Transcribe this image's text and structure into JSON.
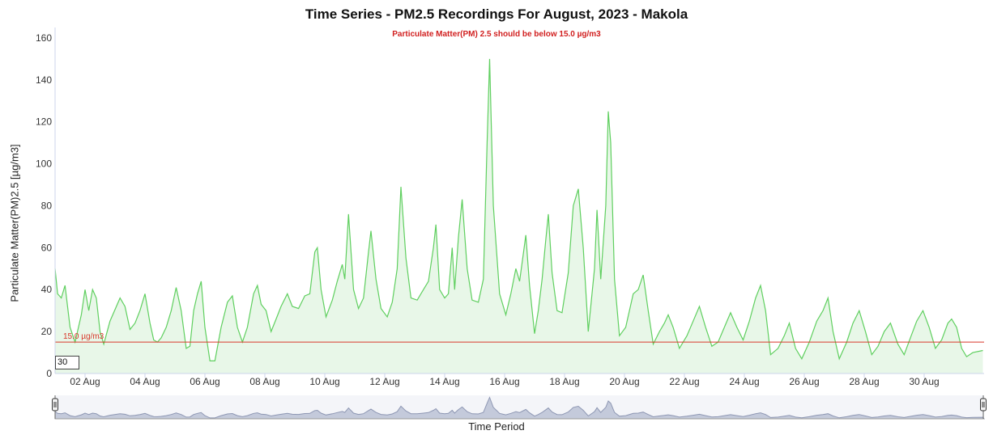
{
  "chart_data": {
    "type": "area",
    "title": "Time Series - PM2.5 Recordings For August, 2023 - Makola",
    "subtitle": "Particulate Matter(PM) 2.5 should be below 15.0 µg/m3",
    "ylabel": "Particulate Matter(PM)2.5 [µg/m3]",
    "navigator_label": "Time Period",
    "ylim": [
      0,
      165
    ],
    "yticks": [
      0,
      20,
      40,
      60,
      80,
      100,
      120,
      140,
      160
    ],
    "xlim": [
      "2023-08-01",
      "2023-09-01"
    ],
    "xtick_labels": [
      "02 Aug",
      "04 Aug",
      "06 Aug",
      "08 Aug",
      "10 Aug",
      "12 Aug",
      "14 Aug",
      "16 Aug",
      "18 Aug",
      "20 Aug",
      "22 Aug",
      "24 Aug",
      "26 Aug",
      "28 Aug",
      "30 Aug"
    ],
    "threshold": {
      "value": 15.0,
      "label": "15.0 µg/m3",
      "color": "#d9382b"
    },
    "zoom_value": "30",
    "series_color": "#5fcf5f",
    "fill_color": "#e8f7e8",
    "navigator_color": "#8e97b3",
    "points": [
      [
        "2023-08-01 00:00",
        50
      ],
      [
        "2023-08-01 02:00",
        38
      ],
      [
        "2023-08-01 05:00",
        36
      ],
      [
        "2023-08-01 08:00",
        42
      ],
      [
        "2023-08-01 12:00",
        22
      ],
      [
        "2023-08-01 16:00",
        15
      ],
      [
        "2023-08-01 21:00",
        28
      ],
      [
        "2023-08-02 00:00",
        40
      ],
      [
        "2023-08-02 03:00",
        30
      ],
      [
        "2023-08-02 06:00",
        40
      ],
      [
        "2023-08-02 09:00",
        36
      ],
      [
        "2023-08-02 12:00",
        20
      ],
      [
        "2023-08-02 15:00",
        14
      ],
      [
        "2023-08-02 20:00",
        25
      ],
      [
        "2023-08-03 04:00",
        36
      ],
      [
        "2023-08-03 08:00",
        32
      ],
      [
        "2023-08-03 12:00",
        21
      ],
      [
        "2023-08-03 16:00",
        24
      ],
      [
        "2023-08-03 20:00",
        30
      ],
      [
        "2023-08-04 00:00",
        38
      ],
      [
        "2023-08-04 04:00",
        24
      ],
      [
        "2023-08-04 07:00",
        16
      ],
      [
        "2023-08-04 10:00",
        15
      ],
      [
        "2023-08-04 13:00",
        17
      ],
      [
        "2023-08-04 17:00",
        22
      ],
      [
        "2023-08-04 21:00",
        30
      ],
      [
        "2023-08-05 01:00",
        41
      ],
      [
        "2023-08-05 05:00",
        30
      ],
      [
        "2023-08-05 09:00",
        12
      ],
      [
        "2023-08-05 12:00",
        13
      ],
      [
        "2023-08-05 15:00",
        30
      ],
      [
        "2023-08-05 18:00",
        38
      ],
      [
        "2023-08-05 21:00",
        44
      ],
      [
        "2023-08-06 00:00",
        22
      ],
      [
        "2023-08-06 04:00",
        6
      ],
      [
        "2023-08-06 08:00",
        6
      ],
      [
        "2023-08-06 13:00",
        22
      ],
      [
        "2023-08-06 18:00",
        34
      ],
      [
        "2023-08-06 22:00",
        37
      ],
      [
        "2023-08-07 02:00",
        22
      ],
      [
        "2023-08-07 06:00",
        15
      ],
      [
        "2023-08-07 10:00",
        22
      ],
      [
        "2023-08-07 15:00",
        38
      ],
      [
        "2023-08-07 18:00",
        42
      ],
      [
        "2023-08-07 21:00",
        33
      ],
      [
        "2023-08-08 01:00",
        30
      ],
      [
        "2023-08-08 05:00",
        20
      ],
      [
        "2023-08-08 09:00",
        26
      ],
      [
        "2023-08-08 13:00",
        32
      ],
      [
        "2023-08-08 18:00",
        38
      ],
      [
        "2023-08-08 22:00",
        32
      ],
      [
        "2023-08-09 03:00",
        31
      ],
      [
        "2023-08-09 08:00",
        37
      ],
      [
        "2023-08-09 12:00",
        38
      ],
      [
        "2023-08-09 16:00",
        58
      ],
      [
        "2023-08-09 18:00",
        60
      ],
      [
        "2023-08-09 21:00",
        40
      ],
      [
        "2023-08-10 01:00",
        27
      ],
      [
        "2023-08-10 06:00",
        35
      ],
      [
        "2023-08-10 10:00",
        44
      ],
      [
        "2023-08-10 14:00",
        52
      ],
      [
        "2023-08-10 16:00",
        45
      ],
      [
        "2023-08-10 19:00",
        76
      ],
      [
        "2023-08-10 23:00",
        40
      ],
      [
        "2023-08-11 03:00",
        31
      ],
      [
        "2023-08-11 07:00",
        36
      ],
      [
        "2023-08-11 11:00",
        58
      ],
      [
        "2023-08-11 13:00",
        68
      ],
      [
        "2023-08-11 17:00",
        45
      ],
      [
        "2023-08-11 21:00",
        31
      ],
      [
        "2023-08-12 02:00",
        27
      ],
      [
        "2023-08-12 06:00",
        34
      ],
      [
        "2023-08-12 10:00",
        50
      ],
      [
        "2023-08-12 13:00",
        89
      ],
      [
        "2023-08-12 17:00",
        55
      ],
      [
        "2023-08-12 21:00",
        36
      ],
      [
        "2023-08-13 02:00",
        35
      ],
      [
        "2023-08-13 07:00",
        40
      ],
      [
        "2023-08-13 11:00",
        44
      ],
      [
        "2023-08-13 15:00",
        60
      ],
      [
        "2023-08-13 17:00",
        71
      ],
      [
        "2023-08-13 20:00",
        40
      ],
      [
        "2023-08-14 00:00",
        36
      ],
      [
        "2023-08-14 03:00",
        38
      ],
      [
        "2023-08-14 06:00",
        60
      ],
      [
        "2023-08-14 08:00",
        40
      ],
      [
        "2023-08-14 11:00",
        65
      ],
      [
        "2023-08-14 14:00",
        83
      ],
      [
        "2023-08-14 18:00",
        50
      ],
      [
        "2023-08-14 22:00",
        35
      ],
      [
        "2023-08-15 03:00",
        34
      ],
      [
        "2023-08-15 07:00",
        45
      ],
      [
        "2023-08-15 10:00",
        110
      ],
      [
        "2023-08-15 12:00",
        150
      ],
      [
        "2023-08-15 15:00",
        80
      ],
      [
        "2023-08-15 20:00",
        38
      ],
      [
        "2023-08-16 01:00",
        28
      ],
      [
        "2023-08-16 05:00",
        38
      ],
      [
        "2023-08-16 09:00",
        50
      ],
      [
        "2023-08-16 12:00",
        44
      ],
      [
        "2023-08-16 15:00",
        57
      ],
      [
        "2023-08-16 17:00",
        66
      ],
      [
        "2023-08-16 20:00",
        42
      ],
      [
        "2023-08-17 00:00",
        19
      ],
      [
        "2023-08-17 03:00",
        30
      ],
      [
        "2023-08-17 06:00",
        45
      ],
      [
        "2023-08-17 09:00",
        64
      ],
      [
        "2023-08-17 11:00",
        76
      ],
      [
        "2023-08-17 14:00",
        48
      ],
      [
        "2023-08-17 18:00",
        30
      ],
      [
        "2023-08-17 22:00",
        29
      ],
      [
        "2023-08-18 03:00",
        48
      ],
      [
        "2023-08-18 07:00",
        80
      ],
      [
        "2023-08-18 11:00",
        88
      ],
      [
        "2023-08-18 15:00",
        60
      ],
      [
        "2023-08-18 19:00",
        20
      ],
      [
        "2023-08-19 00:00",
        50
      ],
      [
        "2023-08-19 02:00",
        78
      ],
      [
        "2023-08-19 05:00",
        45
      ],
      [
        "2023-08-19 09:00",
        80
      ],
      [
        "2023-08-19 11:00",
        125
      ],
      [
        "2023-08-19 13:00",
        110
      ],
      [
        "2023-08-19 16:00",
        45
      ],
      [
        "2023-08-19 20:00",
        18
      ],
      [
        "2023-08-20 01:00",
        22
      ],
      [
        "2023-08-20 07:00",
        38
      ],
      [
        "2023-08-20 11:00",
        40
      ],
      [
        "2023-08-20 15:00",
        47
      ],
      [
        "2023-08-20 19:00",
        30
      ],
      [
        "2023-08-20 23:00",
        14
      ],
      [
        "2023-08-21 04:00",
        20
      ],
      [
        "2023-08-21 08:00",
        24
      ],
      [
        "2023-08-21 11:00",
        28
      ],
      [
        "2023-08-21 15:00",
        22
      ],
      [
        "2023-08-21 20:00",
        12
      ],
      [
        "2023-08-22 02:00",
        18
      ],
      [
        "2023-08-22 07:00",
        25
      ],
      [
        "2023-08-22 12:00",
        32
      ],
      [
        "2023-08-22 17:00",
        22
      ],
      [
        "2023-08-22 22:00",
        13
      ],
      [
        "2023-08-23 03:00",
        15
      ],
      [
        "2023-08-23 08:00",
        22
      ],
      [
        "2023-08-23 13:00",
        29
      ],
      [
        "2023-08-23 18:00",
        22
      ],
      [
        "2023-08-23 23:00",
        16
      ],
      [
        "2023-08-24 04:00",
        25
      ],
      [
        "2023-08-24 09:00",
        36
      ],
      [
        "2023-08-24 13:00",
        42
      ],
      [
        "2023-08-24 17:00",
        30
      ],
      [
        "2023-08-24 21:00",
        9
      ],
      [
        "2023-08-25 03:00",
        12
      ],
      [
        "2023-08-25 08:00",
        18
      ],
      [
        "2023-08-25 12:00",
        24
      ],
      [
        "2023-08-25 17:00",
        12
      ],
      [
        "2023-08-25 22:00",
        7
      ],
      [
        "2023-08-26 04:00",
        15
      ],
      [
        "2023-08-26 10:00",
        25
      ],
      [
        "2023-08-26 15:00",
        30
      ],
      [
        "2023-08-26 19:00",
        36
      ],
      [
        "2023-08-26 23:00",
        20
      ],
      [
        "2023-08-27 04:00",
        7
      ],
      [
        "2023-08-27 10:00",
        15
      ],
      [
        "2023-08-27 15:00",
        24
      ],
      [
        "2023-08-27 20:00",
        30
      ],
      [
        "2023-08-28 01:00",
        20
      ],
      [
        "2023-08-28 06:00",
        9
      ],
      [
        "2023-08-28 11:00",
        13
      ],
      [
        "2023-08-28 16:00",
        20
      ],
      [
        "2023-08-28 21:00",
        24
      ],
      [
        "2023-08-29 03:00",
        14
      ],
      [
        "2023-08-29 08:00",
        9
      ],
      [
        "2023-08-29 13:00",
        17
      ],
      [
        "2023-08-29 18:00",
        25
      ],
      [
        "2023-08-29 23:00",
        30
      ],
      [
        "2023-08-30 04:00",
        22
      ],
      [
        "2023-08-30 09:00",
        12
      ],
      [
        "2023-08-30 14:00",
        16
      ],
      [
        "2023-08-30 19:00",
        24
      ],
      [
        "2023-08-30 22:00",
        26
      ],
      [
        "2023-08-31 02:00",
        22
      ],
      [
        "2023-08-31 06:00",
        12
      ],
      [
        "2023-08-31 10:00",
        8
      ],
      [
        "2023-08-31 15:00",
        10
      ],
      [
        "2023-08-31 23:00",
        11
      ]
    ]
  }
}
